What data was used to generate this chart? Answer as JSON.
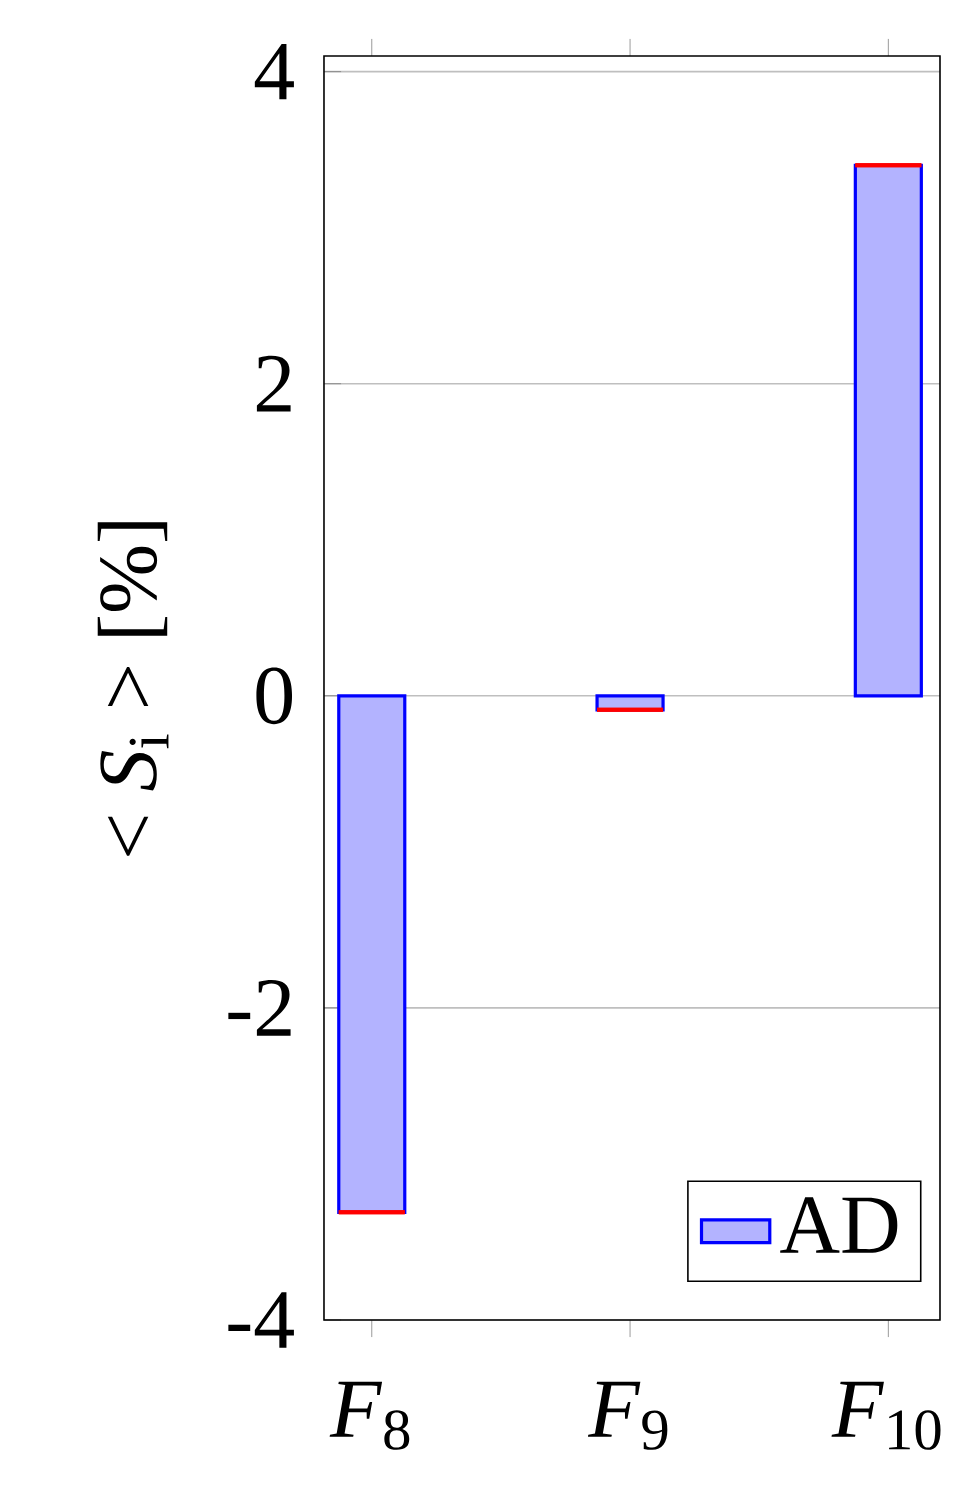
{
  "chart_data": {
    "type": "bar",
    "ylabel": "< *S*$_{i}$ > [%]",
    "categories": [
      "*F*$_{8}$",
      "*F*$_{9}$",
      "*F*$_{10}$"
    ],
    "series": [
      {
        "name": "AD",
        "color": "#b3b3ff",
        "values": [
          -3.31,
          -0.09,
          3.4
        ],
        "errors": [
          0,
          0,
          0
        ]
      }
    ],
    "ylim": [
      -4,
      4.1
    ],
    "yticks": [
      -4,
      -2,
      0,
      2,
      4
    ],
    "grid": "y",
    "legend": "bottom right"
  }
}
